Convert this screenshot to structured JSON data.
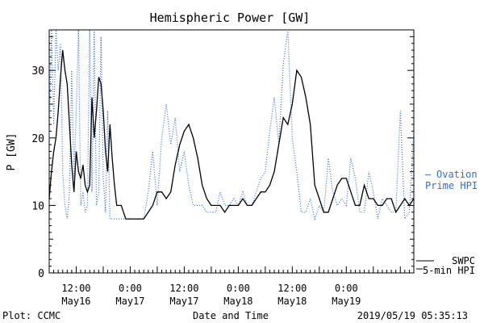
{
  "chart_data": {
    "type": "line",
    "title": "Hemispheric Power [GW]",
    "ylabel": "P [GW]",
    "xlabel": "Date and Time",
    "ylim": [
      0,
      36
    ],
    "xlim_hours": [
      0,
      81
    ],
    "yticks": [
      "0",
      "10",
      "20",
      "30"
    ],
    "ytick_values": [
      0,
      10,
      20,
      30
    ],
    "xticks": [
      {
        "h": 6,
        "time": "12:00",
        "date": "May16"
      },
      {
        "h": 18,
        "time": "0:00",
        "date": "May17"
      },
      {
        "h": 30,
        "time": "12:00",
        "date": "May17"
      },
      {
        "h": 42,
        "time": "0:00",
        "date": "May18"
      },
      {
        "h": 54,
        "time": "12:00",
        "date": "May18"
      },
      {
        "h": 66,
        "time": "0:00",
        "date": "May19"
      }
    ],
    "series": [
      {
        "name": "SWPC 5-min HPI",
        "color": "#000000",
        "style": "solid",
        "x": [
          0,
          0.5,
          1,
          1.5,
          2,
          2.5,
          3,
          3.5,
          4,
          4.5,
          5,
          5.5,
          6,
          6.5,
          7,
          7.5,
          8,
          8.5,
          9,
          9.5,
          10,
          10.5,
          11,
          11.5,
          12,
          12.5,
          13,
          13.5,
          14,
          14.5,
          15,
          15.5,
          16,
          16.5,
          17,
          17.5,
          18,
          18.5,
          19,
          19.5,
          20,
          21,
          22,
          23,
          24,
          25,
          26,
          27,
          28,
          29,
          30,
          31,
          32,
          33,
          34,
          35,
          36,
          37,
          38,
          39,
          40,
          41,
          42,
          43,
          44,
          45,
          46,
          47,
          48,
          49,
          50,
          51,
          52,
          53,
          54,
          55,
          56,
          57,
          58,
          59,
          60,
          61,
          62,
          63,
          64,
          65,
          66,
          67,
          68,
          69,
          70,
          71,
          72,
          73,
          74,
          75,
          76,
          77,
          78,
          79,
          80,
          81
        ],
        "y": [
          11,
          15,
          18,
          20,
          24,
          29,
          33,
          30,
          28,
          22,
          16,
          12,
          18,
          15,
          14,
          16,
          13,
          12,
          13,
          26,
          20,
          24,
          29,
          28,
          24,
          18,
          15,
          22,
          17,
          13,
          10,
          10,
          10,
          9,
          8,
          8,
          8,
          8,
          8,
          8,
          8,
          8,
          9,
          10,
          12,
          12,
          11,
          12,
          16,
          19,
          21,
          22,
          20,
          17,
          13,
          11,
          10,
          10,
          10,
          9,
          10,
          10,
          10,
          11,
          10,
          10,
          11,
          12,
          12,
          13,
          15,
          19,
          23,
          22,
          25,
          30,
          29,
          26,
          22,
          13,
          11,
          9,
          9,
          11,
          13,
          14,
          14,
          12,
          10,
          10,
          13,
          11,
          11,
          10,
          10,
          11,
          11,
          9,
          10,
          11,
          10,
          11
        ]
      },
      {
        "name": "Ovation Prime HPI",
        "color": "#2f6fd6",
        "style": "dotted",
        "x": [
          0,
          0.5,
          1,
          1.5,
          2,
          2.5,
          3,
          3.5,
          4,
          4.5,
          5,
          5.5,
          6,
          6.5,
          7,
          7.5,
          8,
          8.5,
          9,
          9.5,
          10,
          10.5,
          11,
          11.5,
          12,
          12.5,
          13,
          13.5,
          14,
          14.5,
          15,
          15.5,
          16,
          16.5,
          17,
          17.5,
          18,
          18.5,
          19,
          19.5,
          20,
          21,
          22,
          23,
          24,
          25,
          26,
          27,
          28,
          29,
          30,
          31,
          32,
          33,
          34,
          35,
          36,
          37,
          38,
          39,
          40,
          41,
          42,
          43,
          44,
          45,
          46,
          47,
          48,
          49,
          50,
          51,
          52,
          53,
          54,
          55,
          56,
          57,
          58,
          59,
          60,
          61,
          62,
          63,
          64,
          65,
          66,
          67,
          68,
          69,
          70,
          71,
          72,
          73,
          74,
          75,
          76,
          77,
          78,
          79,
          80,
          81
        ],
        "y": [
          20,
          36,
          22,
          36,
          30,
          34,
          15,
          10,
          8,
          12,
          30,
          14,
          24,
          36,
          10,
          12,
          9,
          10,
          36,
          12,
          36,
          10,
          12,
          35,
          14,
          9,
          24,
          8,
          8,
          8,
          8,
          8,
          8,
          8,
          8,
          8,
          8,
          8,
          8,
          8,
          8,
          8,
          12,
          18,
          10,
          20,
          25,
          19,
          23,
          15,
          18,
          13,
          10,
          10,
          10,
          9,
          9,
          9,
          12,
          10,
          10,
          11,
          10,
          12,
          10,
          10,
          12,
          14,
          15,
          21,
          26,
          19,
          31,
          36,
          20,
          15,
          9,
          9,
          11,
          8,
          10,
          9,
          17,
          12,
          10,
          11,
          10,
          17,
          14,
          9,
          9,
          15,
          12,
          8,
          11,
          10,
          9,
          9,
          24,
          8,
          9,
          21
        ]
      }
    ]
  },
  "legend": {
    "ovation_line1": "Ovation",
    "ovation_line2": "Prime HPI",
    "swpc_line1": "SWPC",
    "swpc_line2": "5-min HPI"
  },
  "footer": {
    "left": "Plot: CCMC",
    "right": "2019/05/19 05:35:13"
  }
}
